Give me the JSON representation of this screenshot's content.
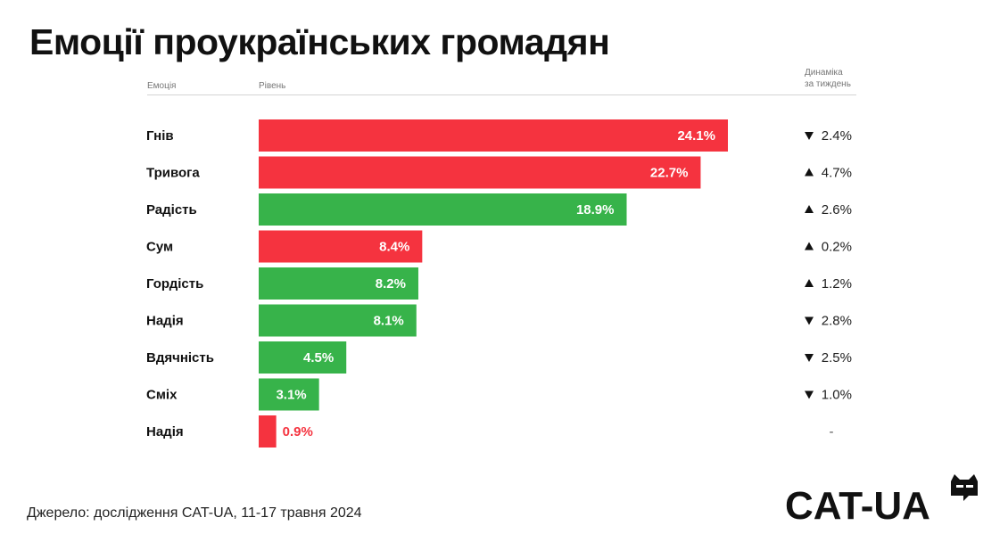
{
  "title": "Емоції проукраїнських громадян",
  "headers": {
    "emotion": "Емоція",
    "level": "Рівень",
    "dynamics_line1": "Динаміка",
    "dynamics_line2": "за тиждень"
  },
  "chart_data": {
    "type": "bar",
    "orientation": "horizontal",
    "categories": [
      "Гнів",
      "Тривога",
      "Радість",
      "Сум",
      "Гордість",
      "Надія",
      "Вдячність",
      "Сміх",
      "Надія"
    ],
    "values": [
      24.1,
      22.7,
      18.9,
      8.4,
      8.2,
      8.1,
      4.5,
      3.1,
      0.9
    ],
    "value_labels": [
      "24.1%",
      "22.7%",
      "18.9%",
      "8.4%",
      "8.2%",
      "8.1%",
      "4.5%",
      "3.1%",
      "0.9%"
    ],
    "bar_colors": [
      "#f5333f",
      "#f5333f",
      "#37b34a",
      "#f5333f",
      "#37b34a",
      "#37b34a",
      "#37b34a",
      "#37b34a",
      "#f5333f"
    ],
    "weekly_change": [
      {
        "direction": "down",
        "text": "2.4%"
      },
      {
        "direction": "up",
        "text": "4.7%"
      },
      {
        "direction": "up",
        "text": "2.6%"
      },
      {
        "direction": "up",
        "text": "0.2%"
      },
      {
        "direction": "up",
        "text": "1.2%"
      },
      {
        "direction": "down",
        "text": "2.8%"
      },
      {
        "direction": "down",
        "text": "2.5%"
      },
      {
        "direction": "down",
        "text": "1.0%"
      },
      {
        "direction": "none",
        "text": "-"
      }
    ],
    "xlim": [
      0,
      24.1
    ],
    "grid": false,
    "legend": "none"
  },
  "colors": {
    "negative": "#f5333f",
    "positive": "#37b34a",
    "text": "#111111"
  },
  "source": "Джерело: дослідження CAT-UA, 11-17 травня 2024",
  "logo_text": "CAT-UA"
}
